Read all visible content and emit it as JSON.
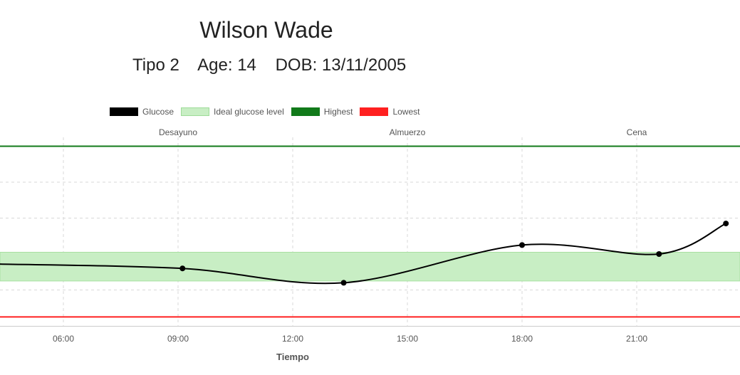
{
  "patient": {
    "name": "Wilson Wade",
    "type": "Tipo 2",
    "age": "Age: 14",
    "dob": "DOB: 13/11/2005"
  },
  "legend": [
    {
      "label": "Glucose",
      "color": "#000000",
      "fill": "#000000"
    },
    {
      "label": "Ideal glucose level",
      "color": "#c8eec4",
      "fill": "#c8eec4"
    },
    {
      "label": "Highest",
      "color": "#117a1a",
      "fill": "#117a1a"
    },
    {
      "label": "Lowest",
      "color": "#ff2020",
      "fill": "#ff2020"
    }
  ],
  "chart_data": {
    "type": "line",
    "xlabel": "Tiempo",
    "ylabel": "",
    "x_ticks": [
      "06:00",
      "09:00",
      "12:00",
      "15:00",
      "18:00",
      "21:00"
    ],
    "meals": [
      {
        "label": "Desayuno",
        "time": "09:00"
      },
      {
        "label": "Almuerzo",
        "time": "15:00"
      },
      {
        "label": "Cena",
        "time": "21:00"
      }
    ],
    "y_range_relative": [
      0,
      5
    ],
    "ideal_range": [
      1.25,
      2.05
    ],
    "highest": 5.0,
    "lowest": 0.25,
    "series": [
      {
        "name": "Glucose",
        "points": [
          {
            "x": "09:07",
            "y": 1.6
          },
          {
            "x": "13:20",
            "y": 1.2
          },
          {
            "x": "18:00",
            "y": 2.25
          },
          {
            "x": "21:35",
            "y": 2.0
          },
          {
            "x": "23:20",
            "y": 2.85
          }
        ],
        "start_y": 1.72
      }
    ],
    "grid": true,
    "legend_position": "top"
  }
}
